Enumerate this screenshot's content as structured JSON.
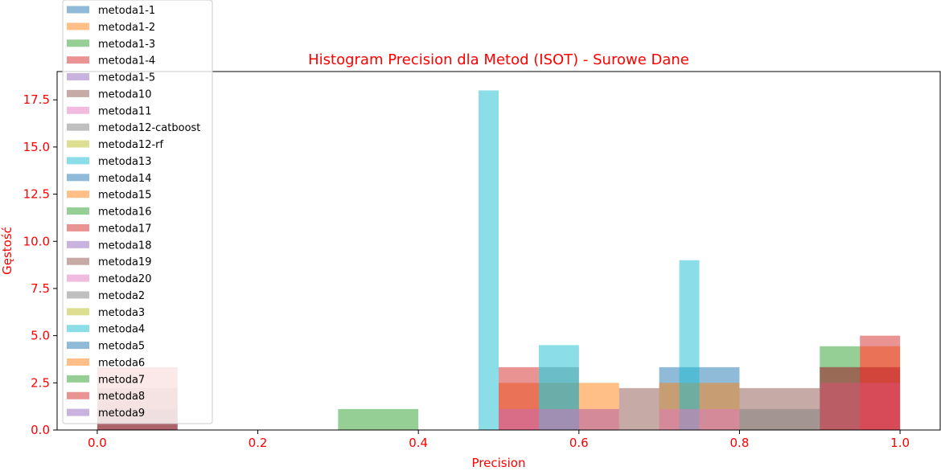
{
  "chart_data": {
    "type": "bar",
    "title": "Histogram Precision dla Metod (ISOT) - Surowe Dane",
    "xlabel": "Precision",
    "ylabel": "Gęstość",
    "xlim": [
      -0.05,
      1.05
    ],
    "ylim": [
      0,
      19
    ],
    "xticks": [
      0.0,
      0.2,
      0.4,
      0.6,
      0.8,
      1.0
    ],
    "xtick_labels": [
      "0.0",
      "0.2",
      "0.4",
      "0.6",
      "0.8",
      "1.0"
    ],
    "yticks": [
      0.0,
      2.5,
      5.0,
      7.5,
      10.0,
      12.5,
      15.0,
      17.5
    ],
    "ytick_labels": [
      "0.0",
      "2.5",
      "5.0",
      "7.5",
      "10.0",
      "12.5",
      "15.0",
      "17.5"
    ],
    "grid": false,
    "legend_position": "upper-left",
    "label_color": "#ff0000",
    "series": [
      {
        "name": "metoda1-1",
        "color": "#1f77b4",
        "bars": [
          {
            "x0": 0.0,
            "x1": 0.1,
            "y": 1.11
          },
          {
            "x0": 0.5,
            "x1": 0.65,
            "y": 1.11
          },
          {
            "x0": 0.7,
            "x1": 0.8,
            "y": 3.33
          },
          {
            "x0": 0.9,
            "x1": 1.0,
            "y": 3.33
          }
        ]
      },
      {
        "name": "metoda1-2",
        "color": "#ff7f0e",
        "bars": [
          {
            "x0": 0.5,
            "x1": 0.65,
            "y": 2.5
          },
          {
            "x0": 0.7,
            "x1": 0.8,
            "y": 2.5
          },
          {
            "x0": 0.95,
            "x1": 1.0,
            "y": 4.44
          }
        ]
      },
      {
        "name": "metoda1-3",
        "color": "#2ca02c",
        "bars": [
          {
            "x0": 0.3,
            "x1": 0.4,
            "y": 1.11
          },
          {
            "x0": 0.9,
            "x1": 0.95,
            "y": 4.44
          }
        ]
      },
      {
        "name": "metoda1-4",
        "color": "#d62728",
        "bars": [
          {
            "x0": 0.5,
            "x1": 0.55,
            "y": 3.33
          },
          {
            "x0": 0.95,
            "x1": 1.0,
            "y": 5.0
          }
        ]
      },
      {
        "name": "metoda1-5",
        "color": "#9467bd",
        "bars": []
      },
      {
        "name": "metoda10",
        "color": "#8c564b",
        "bars": [
          {
            "x0": 0.65,
            "x1": 0.7,
            "y": 2.22
          },
          {
            "x0": 0.8,
            "x1": 0.9,
            "y": 2.22
          }
        ]
      },
      {
        "name": "metoda11",
        "color": "#e377c2",
        "bars": []
      },
      {
        "name": "metoda12-catboost",
        "color": "#7f7f7f",
        "bars": [
          {
            "x0": 0.0,
            "x1": 0.1,
            "y": 2.22
          },
          {
            "x0": 0.55,
            "x1": 0.6,
            "y": 3.33
          },
          {
            "x0": 0.8,
            "x1": 0.9,
            "y": 1.11
          }
        ]
      },
      {
        "name": "metoda12-rf",
        "color": "#bcbd22",
        "bars": []
      },
      {
        "name": "metoda13",
        "color": "#17becf",
        "bars": [
          {
            "x0": 0.475,
            "x1": 0.5,
            "y": 18.0
          },
          {
            "x0": 0.55,
            "x1": 0.6,
            "y": 4.5
          },
          {
            "x0": 0.725,
            "x1": 0.75,
            "y": 9.0
          }
        ]
      },
      {
        "name": "metoda14",
        "color": "#1f77b4",
        "bars": []
      },
      {
        "name": "metoda15",
        "color": "#ff7f0e",
        "bars": []
      },
      {
        "name": "metoda16",
        "color": "#2ca02c",
        "bars": []
      },
      {
        "name": "metoda17",
        "color": "#d62728",
        "bars": [
          {
            "x0": 0.0,
            "x1": 0.1,
            "y": 3.33
          }
        ]
      },
      {
        "name": "metoda18",
        "color": "#9467bd",
        "bars": []
      },
      {
        "name": "metoda19",
        "color": "#8c564b",
        "bars": []
      },
      {
        "name": "metoda20",
        "color": "#e377c2",
        "bars": [
          {
            "x0": 0.5,
            "x1": 0.65,
            "y": 1.11
          },
          {
            "x0": 0.7,
            "x1": 0.8,
            "y": 1.11
          },
          {
            "x0": 0.9,
            "x1": 1.0,
            "y": 2.5
          }
        ]
      },
      {
        "name": "metoda2",
        "color": "#7f7f7f",
        "bars": []
      },
      {
        "name": "metoda3",
        "color": "#bcbd22",
        "bars": []
      },
      {
        "name": "metoda4",
        "color": "#17becf",
        "bars": []
      },
      {
        "name": "metoda5",
        "color": "#1f77b4",
        "bars": []
      },
      {
        "name": "metoda6",
        "color": "#ff7f0e",
        "bars": []
      },
      {
        "name": "metoda7",
        "color": "#2ca02c",
        "bars": []
      },
      {
        "name": "metoda8",
        "color": "#d62728",
        "bars": [
          {
            "x0": 0.9,
            "x1": 1.0,
            "y": 3.33
          }
        ]
      },
      {
        "name": "metoda9",
        "color": "#9467bd",
        "bars": []
      }
    ]
  }
}
